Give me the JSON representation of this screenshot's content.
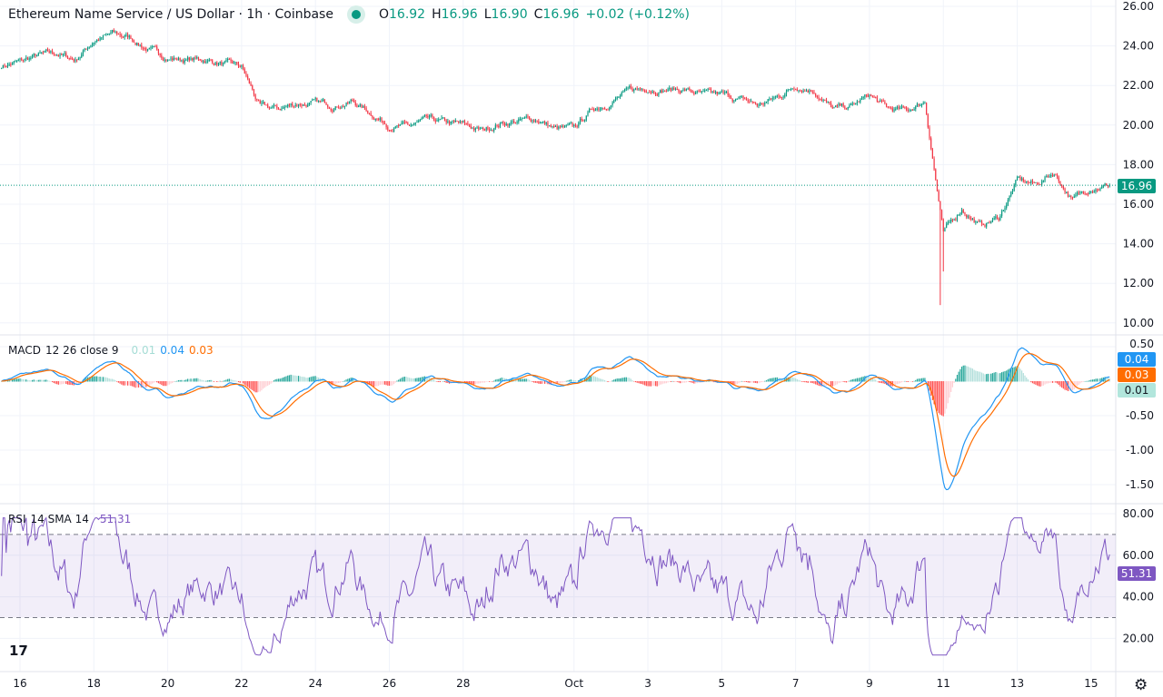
{
  "header": {
    "title": "Ethereum Name Service / US Dollar · 1h · Coinbase",
    "o_label": "O",
    "o": "16.92",
    "h_label": "H",
    "h": "16.96",
    "l_label": "L",
    "l": "16.90",
    "c_label": "C",
    "c": "16.96",
    "change": "+0.02 (+0.12%)",
    "status_color": "#089981"
  },
  "macd_legend": {
    "name": "MACD",
    "params": "12 26 close 9",
    "hist": "0.01",
    "macd": "0.04",
    "signal": "0.03"
  },
  "rsi_legend": {
    "name": "RSI",
    "params": "14 SMA 14",
    "value": "51.31"
  },
  "tags": {
    "price": "16.96",
    "macd": "0.04",
    "signal": "0.03",
    "hist": "0.01",
    "rsi": "51.31"
  },
  "colors": {
    "up": "#089981",
    "down": "#f23645",
    "macd": "#2962ff",
    "signal": "#ff6d00",
    "rsi": "#7e57c2",
    "hist_up": "#26a69a",
    "hist_down": "#ff5252"
  },
  "icons": {
    "logo": "tradingview-logo",
    "settings": "gear-icon"
  },
  "chart_data": {
    "type": "candlestick",
    "interval": "1h",
    "price_axis_ticks": [
      "26.00",
      "24.00",
      "22.00",
      "20.00",
      "18.00",
      "16.00",
      "14.00",
      "12.00",
      "10.00"
    ],
    "macd_axis_ticks": [
      "0.50",
      "-0.50",
      "-1.00",
      "-1.50"
    ],
    "rsi_axis_ticks": [
      "80.00",
      "60.00",
      "40.00",
      "20.00"
    ],
    "rsi_bands": [
      70,
      30
    ],
    "time_axis_ticks": [
      "16",
      "18",
      "20",
      "22",
      "24",
      "26",
      "28",
      "Oct",
      "3",
      "5",
      "7",
      "9",
      "11",
      "13",
      "15"
    ],
    "approx_close_every_12h_from": "Sep 15 12:00",
    "approx_closes": [
      23.0,
      23.2,
      23.5,
      23.6,
      23.3,
      24.3,
      24.6,
      24.4,
      23.8,
      23.4,
      23.3,
      23.3,
      23.1,
      22.9,
      20.9,
      20.8,
      21.1,
      21.1,
      21.0,
      21.2,
      20.6,
      20.0,
      19.9,
      20.2,
      20.1,
      20.0,
      19.7,
      20.1,
      20.2,
      20.3,
      19.8,
      19.8,
      20.8,
      21.2,
      21.7,
      21.9,
      21.8,
      21.8,
      21.5,
      21.5,
      21.3,
      21.0,
      21.4,
      22.0,
      21.8,
      20.8,
      20.9,
      21.5,
      20.8,
      20.7,
      21.2,
      14.5,
      15.8,
      14.9,
      15.3,
      17.2,
      17.0,
      17.6,
      16.2,
      16.9,
      16.96
    ],
    "lowest_low": 10.9,
    "last_price": 16.96
  }
}
